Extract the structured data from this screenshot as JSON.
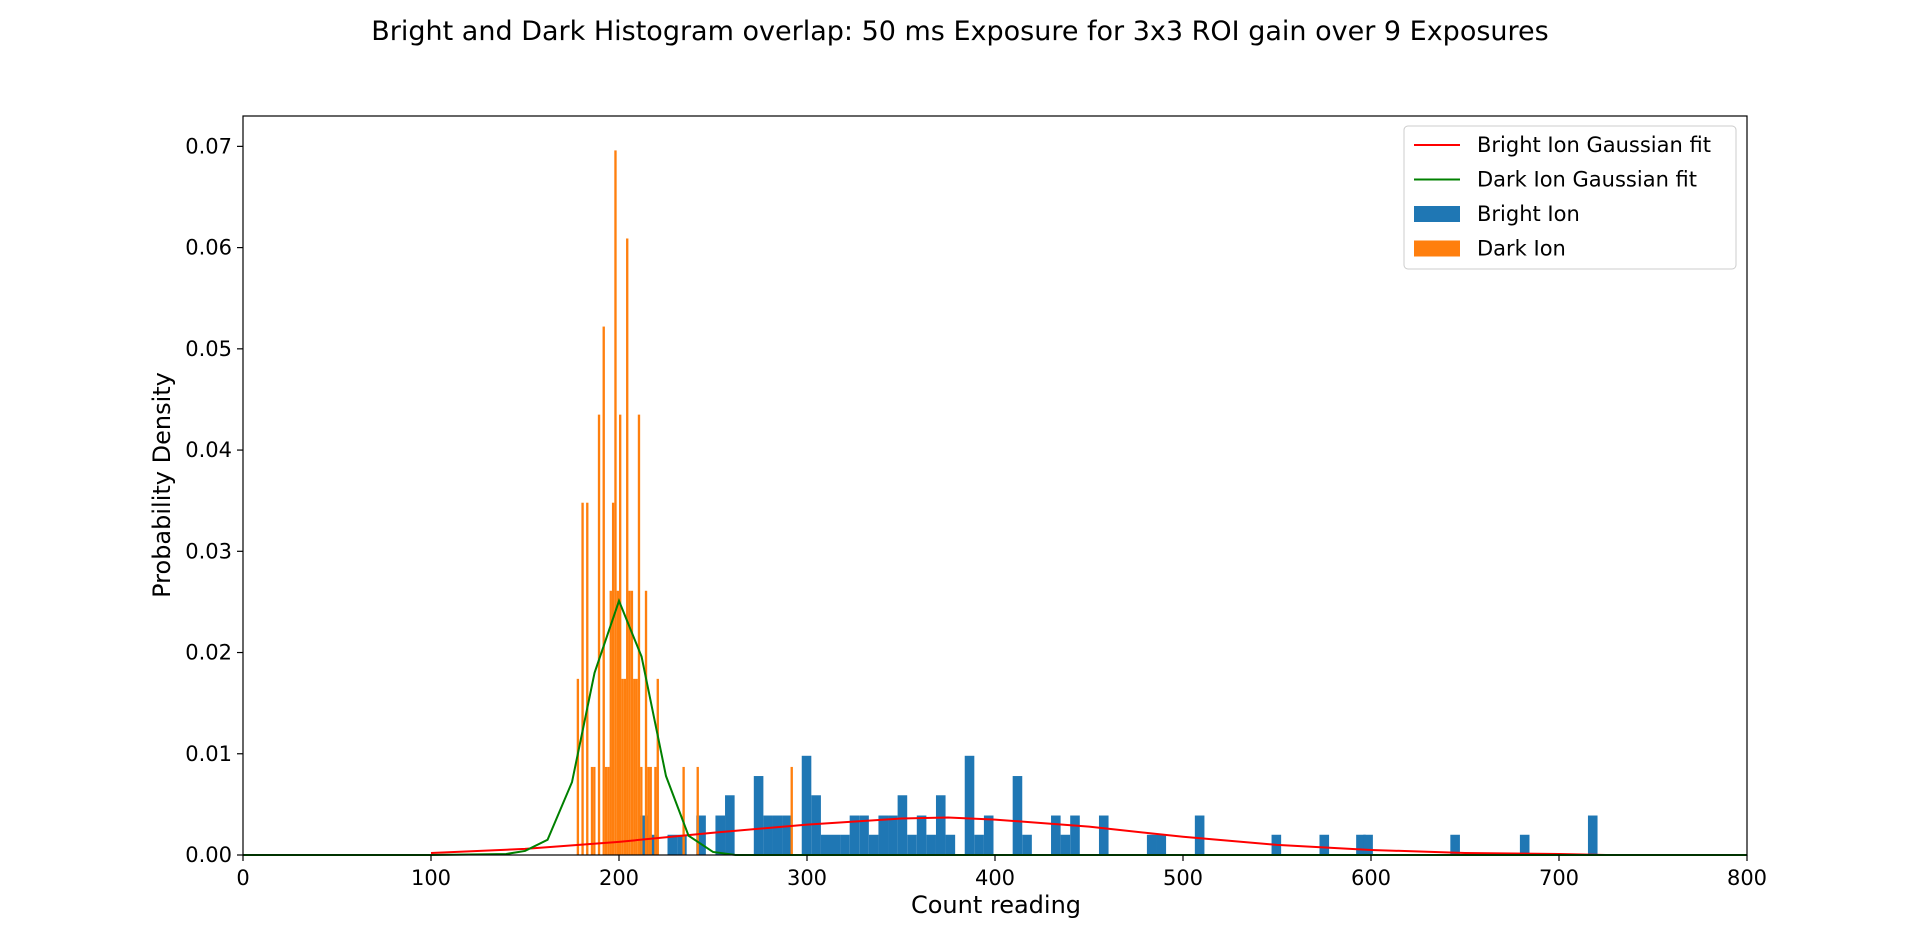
{
  "chart_data": {
    "type": "histogram",
    "title": "Bright and Dark Histogram overlap: 50 ms Exposure for 3x3 ROI gain over 9 Exposures",
    "xlabel": "Count reading",
    "ylabel": "Probability Density",
    "xlim": [
      0,
      800
    ],
    "ylim": [
      0,
      0.073
    ],
    "xticks": [
      0,
      100,
      200,
      300,
      400,
      500,
      600,
      700,
      800
    ],
    "xtick_labels": [
      "0",
      "100",
      "200",
      "300",
      "400",
      "500",
      "600",
      "700",
      "800"
    ],
    "yticks": [
      0,
      0.01,
      0.02,
      0.03,
      0.04,
      0.05,
      0.06,
      0.07
    ],
    "ytick_labels": [
      "0.00",
      "0.01",
      "0.02",
      "0.03",
      "0.04",
      "0.05",
      "0.06",
      "0.07"
    ],
    "grid": false,
    "legend_position": "top-right",
    "legend": [
      {
        "label": "Bright Ion Gaussian fit",
        "kind": "line",
        "color": "#ff0000"
      },
      {
        "label": "Dark Ion Gaussian fit",
        "kind": "line",
        "color": "#008000"
      },
      {
        "label": "Bright Ion",
        "kind": "patch",
        "color": "#1f77b4"
      },
      {
        "label": "Dark Ion",
        "kind": "patch",
        "color": "#ff7f0e"
      }
    ],
    "bright_hist": {
      "name": "Bright Ion",
      "color": "#1f77b4",
      "bin_width": 5.1,
      "bins": [
        [
          210.5,
          0.0039
        ],
        [
          215.6,
          0.002
        ],
        [
          225.8,
          0.002
        ],
        [
          230.9,
          0.002
        ],
        [
          241.1,
          0.0039
        ],
        [
          251.3,
          0.0039
        ],
        [
          256.4,
          0.0059
        ],
        [
          271.7,
          0.0078
        ],
        [
          276.8,
          0.0039
        ],
        [
          281.9,
          0.0039
        ],
        [
          287.0,
          0.0039
        ],
        [
          297.2,
          0.0098
        ],
        [
          302.3,
          0.0059
        ],
        [
          307.4,
          0.002
        ],
        [
          312.5,
          0.002
        ],
        [
          317.6,
          0.002
        ],
        [
          322.7,
          0.0039
        ],
        [
          327.8,
          0.0039
        ],
        [
          332.9,
          0.002
        ],
        [
          338.0,
          0.0039
        ],
        [
          343.1,
          0.0039
        ],
        [
          348.2,
          0.0059
        ],
        [
          353.3,
          0.002
        ],
        [
          358.4,
          0.0039
        ],
        [
          363.5,
          0.002
        ],
        [
          368.6,
          0.0059
        ],
        [
          373.7,
          0.002
        ],
        [
          383.9,
          0.0098
        ],
        [
          389.0,
          0.002
        ],
        [
          394.1,
          0.0039
        ],
        [
          409.4,
          0.0078
        ],
        [
          414.5,
          0.002
        ],
        [
          429.8,
          0.0039
        ],
        [
          434.9,
          0.002
        ],
        [
          440.0,
          0.0039
        ],
        [
          455.3,
          0.0039
        ],
        [
          480.8,
          0.002
        ],
        [
          485.9,
          0.002
        ],
        [
          506.3,
          0.0039
        ],
        [
          547.1,
          0.002
        ],
        [
          572.6,
          0.002
        ],
        [
          592.1,
          0.002
        ],
        [
          595.9,
          0.002
        ],
        [
          642.2,
          0.002
        ],
        [
          679.2,
          0.002
        ],
        [
          715.4,
          0.0039
        ]
      ]
    },
    "dark_hist": {
      "name": "Dark Ion",
      "color": "#ff7f0e",
      "bin_width": 1.25,
      "bins": [
        [
          177.5,
          0.0174
        ],
        [
          180.0,
          0.0348
        ],
        [
          182.5,
          0.0348
        ],
        [
          185.0,
          0.0087
        ],
        [
          186.25,
          0.0087
        ],
        [
          188.75,
          0.0435
        ],
        [
          191.25,
          0.0522
        ],
        [
          192.5,
          0.0087
        ],
        [
          193.75,
          0.0087
        ],
        [
          195.0,
          0.0261
        ],
        [
          196.25,
          0.0348
        ],
        [
          197.5,
          0.0696
        ],
        [
          198.75,
          0.0261
        ],
        [
          200.0,
          0.0435
        ],
        [
          201.25,
          0.0174
        ],
        [
          202.5,
          0.0174
        ],
        [
          203.75,
          0.0609
        ],
        [
          205.0,
          0.0261
        ],
        [
          206.25,
          0.0261
        ],
        [
          207.5,
          0.0174
        ],
        [
          208.75,
          0.0174
        ],
        [
          210.0,
          0.0435
        ],
        [
          211.25,
          0.0087
        ],
        [
          213.75,
          0.0261
        ],
        [
          215.0,
          0.0087
        ],
        [
          216.25,
          0.0087
        ],
        [
          218.75,
          0.0087
        ],
        [
          220.0,
          0.0174
        ],
        [
          233.75,
          0.0087
        ],
        [
          241.25,
          0.0087
        ],
        [
          291.25,
          0.0087
        ]
      ]
    },
    "bright_fit": {
      "name": "Bright Ion Gaussian fit",
      "color": "#ff0000",
      "x": [
        100,
        150,
        200,
        250,
        300,
        350,
        375,
        400,
        450,
        500,
        550,
        600,
        650,
        700,
        725
      ],
      "y": [
        0.0002,
        0.0006,
        0.0013,
        0.0022,
        0.003,
        0.0036,
        0.0037,
        0.0035,
        0.0028,
        0.0018,
        0.001,
        0.0005,
        0.0002,
        0.0001,
        0.0
      ]
    },
    "dark_fit": {
      "name": "Dark Ion Gaussian fit",
      "color": "#008000",
      "x": [
        0,
        100,
        140,
        150,
        162,
        175,
        187,
        200,
        212,
        225,
        237,
        250,
        262,
        300,
        400,
        500,
        600,
        700,
        800
      ],
      "y": [
        0,
        0,
        0.0001,
        0.0004,
        0.0015,
        0.0072,
        0.018,
        0.0251,
        0.0196,
        0.0078,
        0.0019,
        0.0003,
        0.0,
        0,
        0,
        0,
        0,
        0,
        0
      ]
    }
  }
}
